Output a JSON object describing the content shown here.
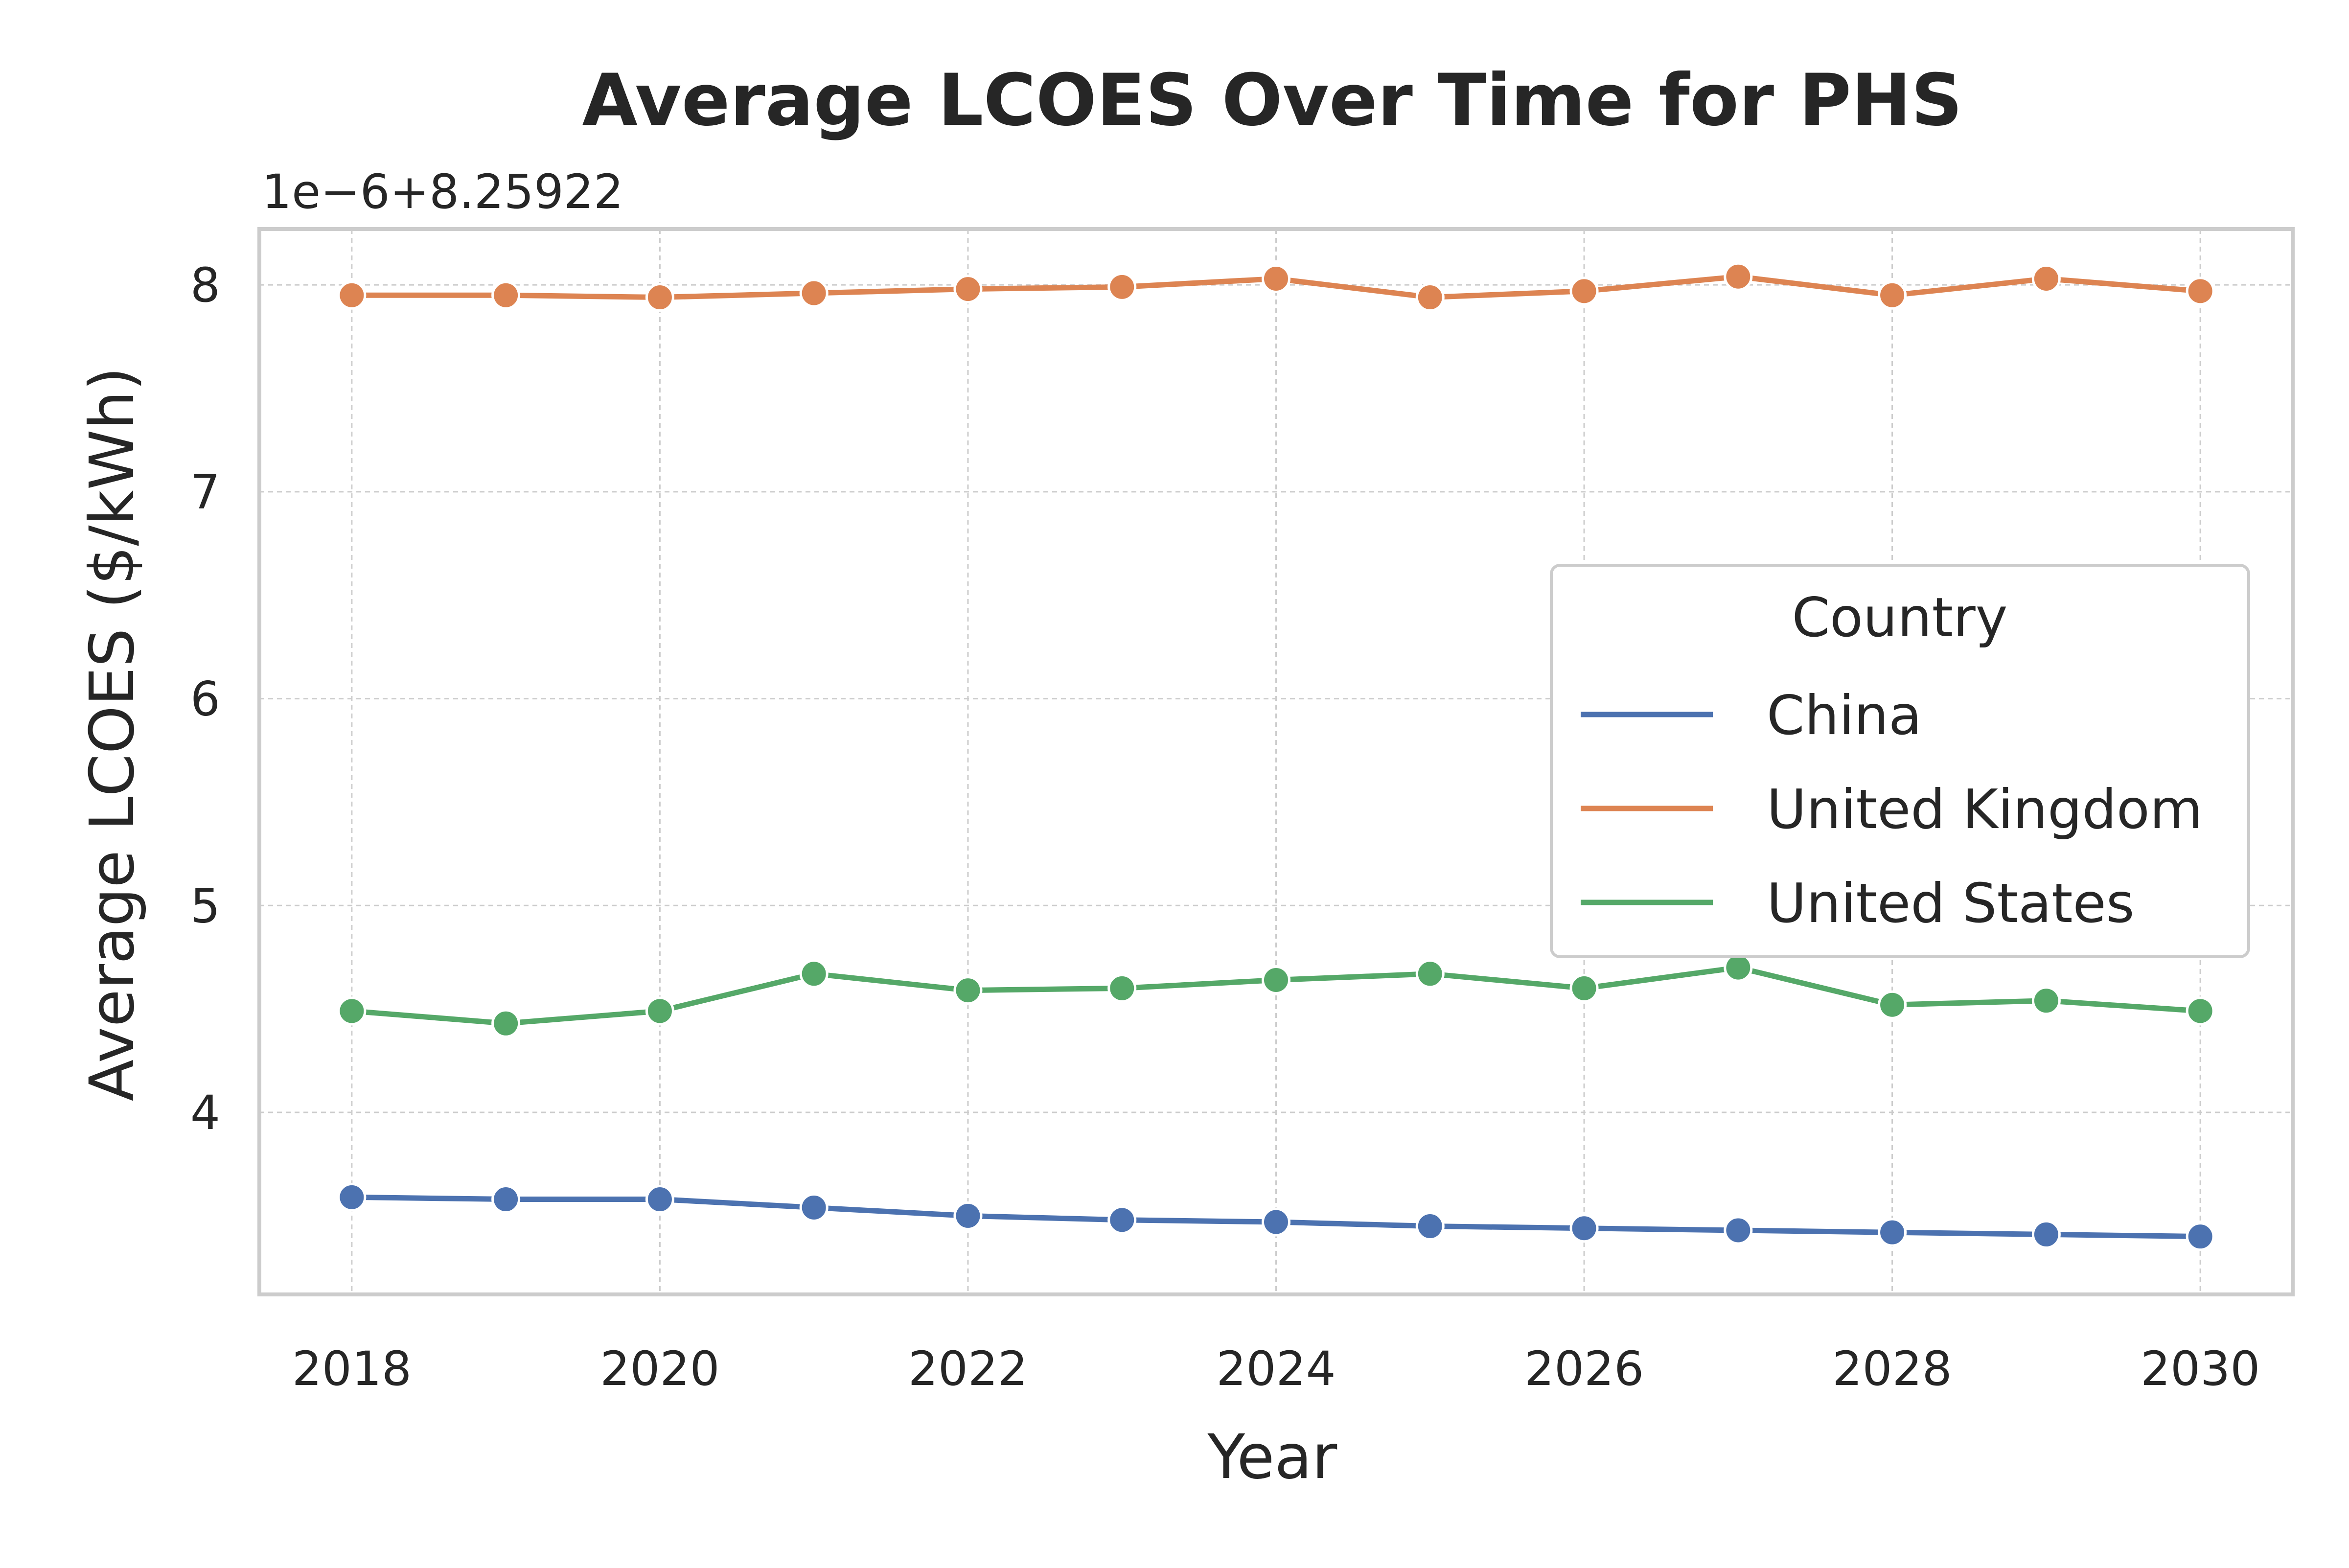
{
  "chart_data": {
    "type": "line",
    "title": "Average LCOES Over Time for PHS",
    "xlabel": "Year",
    "ylabel": "Average LCOES ($/kWh)",
    "offset_label": "1e−6+8.25922",
    "x": [
      2018,
      2019,
      2020,
      2021,
      2022,
      2023,
      2024,
      2025,
      2026,
      2027,
      2028,
      2029,
      2030
    ],
    "x_ticks": [
      2018,
      2020,
      2022,
      2024,
      2026,
      2028,
      2030
    ],
    "x_tick_labels": [
      "2018",
      "2020",
      "2022",
      "2024",
      "2026",
      "2028",
      "2030"
    ],
    "y_ticks": [
      4,
      5,
      6,
      7,
      8
    ],
    "y_tick_labels": [
      "4",
      "5",
      "6",
      "7",
      "8"
    ],
    "xlim": [
      2017.4,
      2030.6
    ],
    "ylim": [
      3.12,
      8.27
    ],
    "grid": true,
    "legend": {
      "title": "Country",
      "placement": "center-right"
    },
    "series": [
      {
        "name": "China",
        "color": "#4c72b0",
        "values": [
          3.59,
          3.58,
          3.58,
          3.54,
          3.5,
          3.48,
          3.47,
          3.45,
          3.44,
          3.43,
          3.42,
          3.41,
          3.4
        ]
      },
      {
        "name": "United Kingdom",
        "color": "#dd8452",
        "values": [
          7.95,
          7.95,
          7.94,
          7.96,
          7.98,
          7.99,
          8.03,
          7.94,
          7.97,
          8.04,
          7.95,
          8.03,
          7.97
        ]
      },
      {
        "name": "United States",
        "color": "#55a868",
        "values": [
          4.49,
          4.43,
          4.49,
          4.67,
          4.59,
          4.6,
          4.64,
          4.67,
          4.6,
          4.7,
          4.52,
          4.54,
          4.49
        ]
      }
    ]
  }
}
